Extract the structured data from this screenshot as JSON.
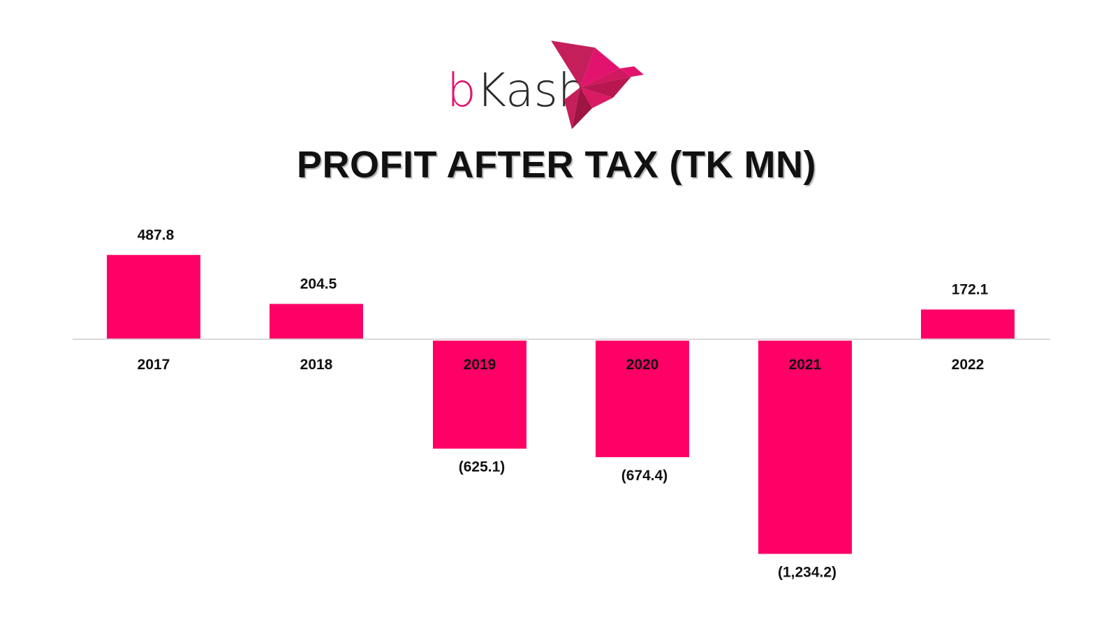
{
  "logo": {
    "brand_prefix": "b",
    "brand_rest": "Kash"
  },
  "chart_data": {
    "type": "bar",
    "title": "PROFIT AFTER TAX (TK MN)",
    "categories": [
      "2017",
      "2018",
      "2019",
      "2020",
      "2021",
      "2022"
    ],
    "values": [
      487.8,
      204.5,
      -625.1,
      -674.4,
      -1234.2,
      172.1
    ],
    "value_labels": [
      "487.8",
      "204.5",
      "(625.1)",
      "(674.4)",
      "(1,234.2)",
      "172.1"
    ],
    "bar_color": "#ff0066",
    "axis_color": "#d9d9d9",
    "grid": false,
    "legend": false
  }
}
